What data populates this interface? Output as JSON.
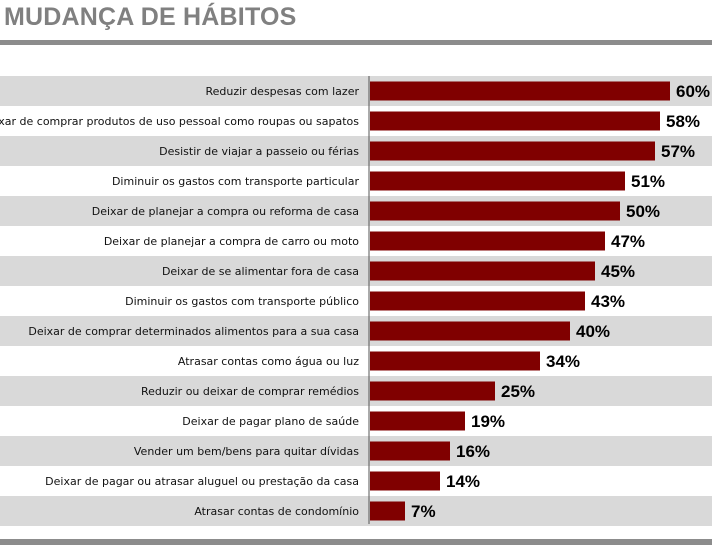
{
  "page": {
    "title": "MUDANÇA DE HÁBITOS"
  },
  "colors": {
    "bar": "#800000",
    "row_shade": "#d9d9d9",
    "title": "#808080",
    "rule": "#8c8c8c"
  },
  "chart_data": {
    "type": "bar",
    "orientation": "horizontal",
    "title": "MUDANÇA DE HÁBITOS",
    "unit": "%",
    "xlim": [
      0,
      60
    ],
    "grid": false,
    "categories": [
      "Reduzir despesas com lazer",
      "Deixar de comprar produtos de uso pessoal como roupas ou sapatos",
      "Desistir de viajar a passeio ou férias",
      "Diminuir os gastos com transporte particular",
      "Deixar de planejar a compra ou reforma de casa",
      "Deixar de planejar a compra de carro ou moto",
      "Deixar de se alimentar fora de casa",
      "Diminuir os gastos com transporte público",
      "Deixar de comprar determinados alimentos para a sua casa",
      "Atrasar contas como água ou luz",
      "Reduzir ou deixar de comprar remédios",
      "Deixar de pagar plano de saúde",
      "Vender um bem/bens para quitar dívidas",
      "Deixar de pagar ou atrasar aluguel ou prestação da casa",
      "Atrasar contas de condomínio"
    ],
    "values": [
      60,
      58,
      57,
      51,
      50,
      47,
      45,
      43,
      40,
      34,
      25,
      19,
      16,
      14,
      7
    ],
    "value_labels": [
      "60%",
      "58%",
      "57%",
      "51%",
      "50%",
      "47%",
      "45%",
      "43%",
      "40%",
      "34%",
      "25%",
      "19%",
      "16%",
      "14%",
      "7%"
    ]
  }
}
